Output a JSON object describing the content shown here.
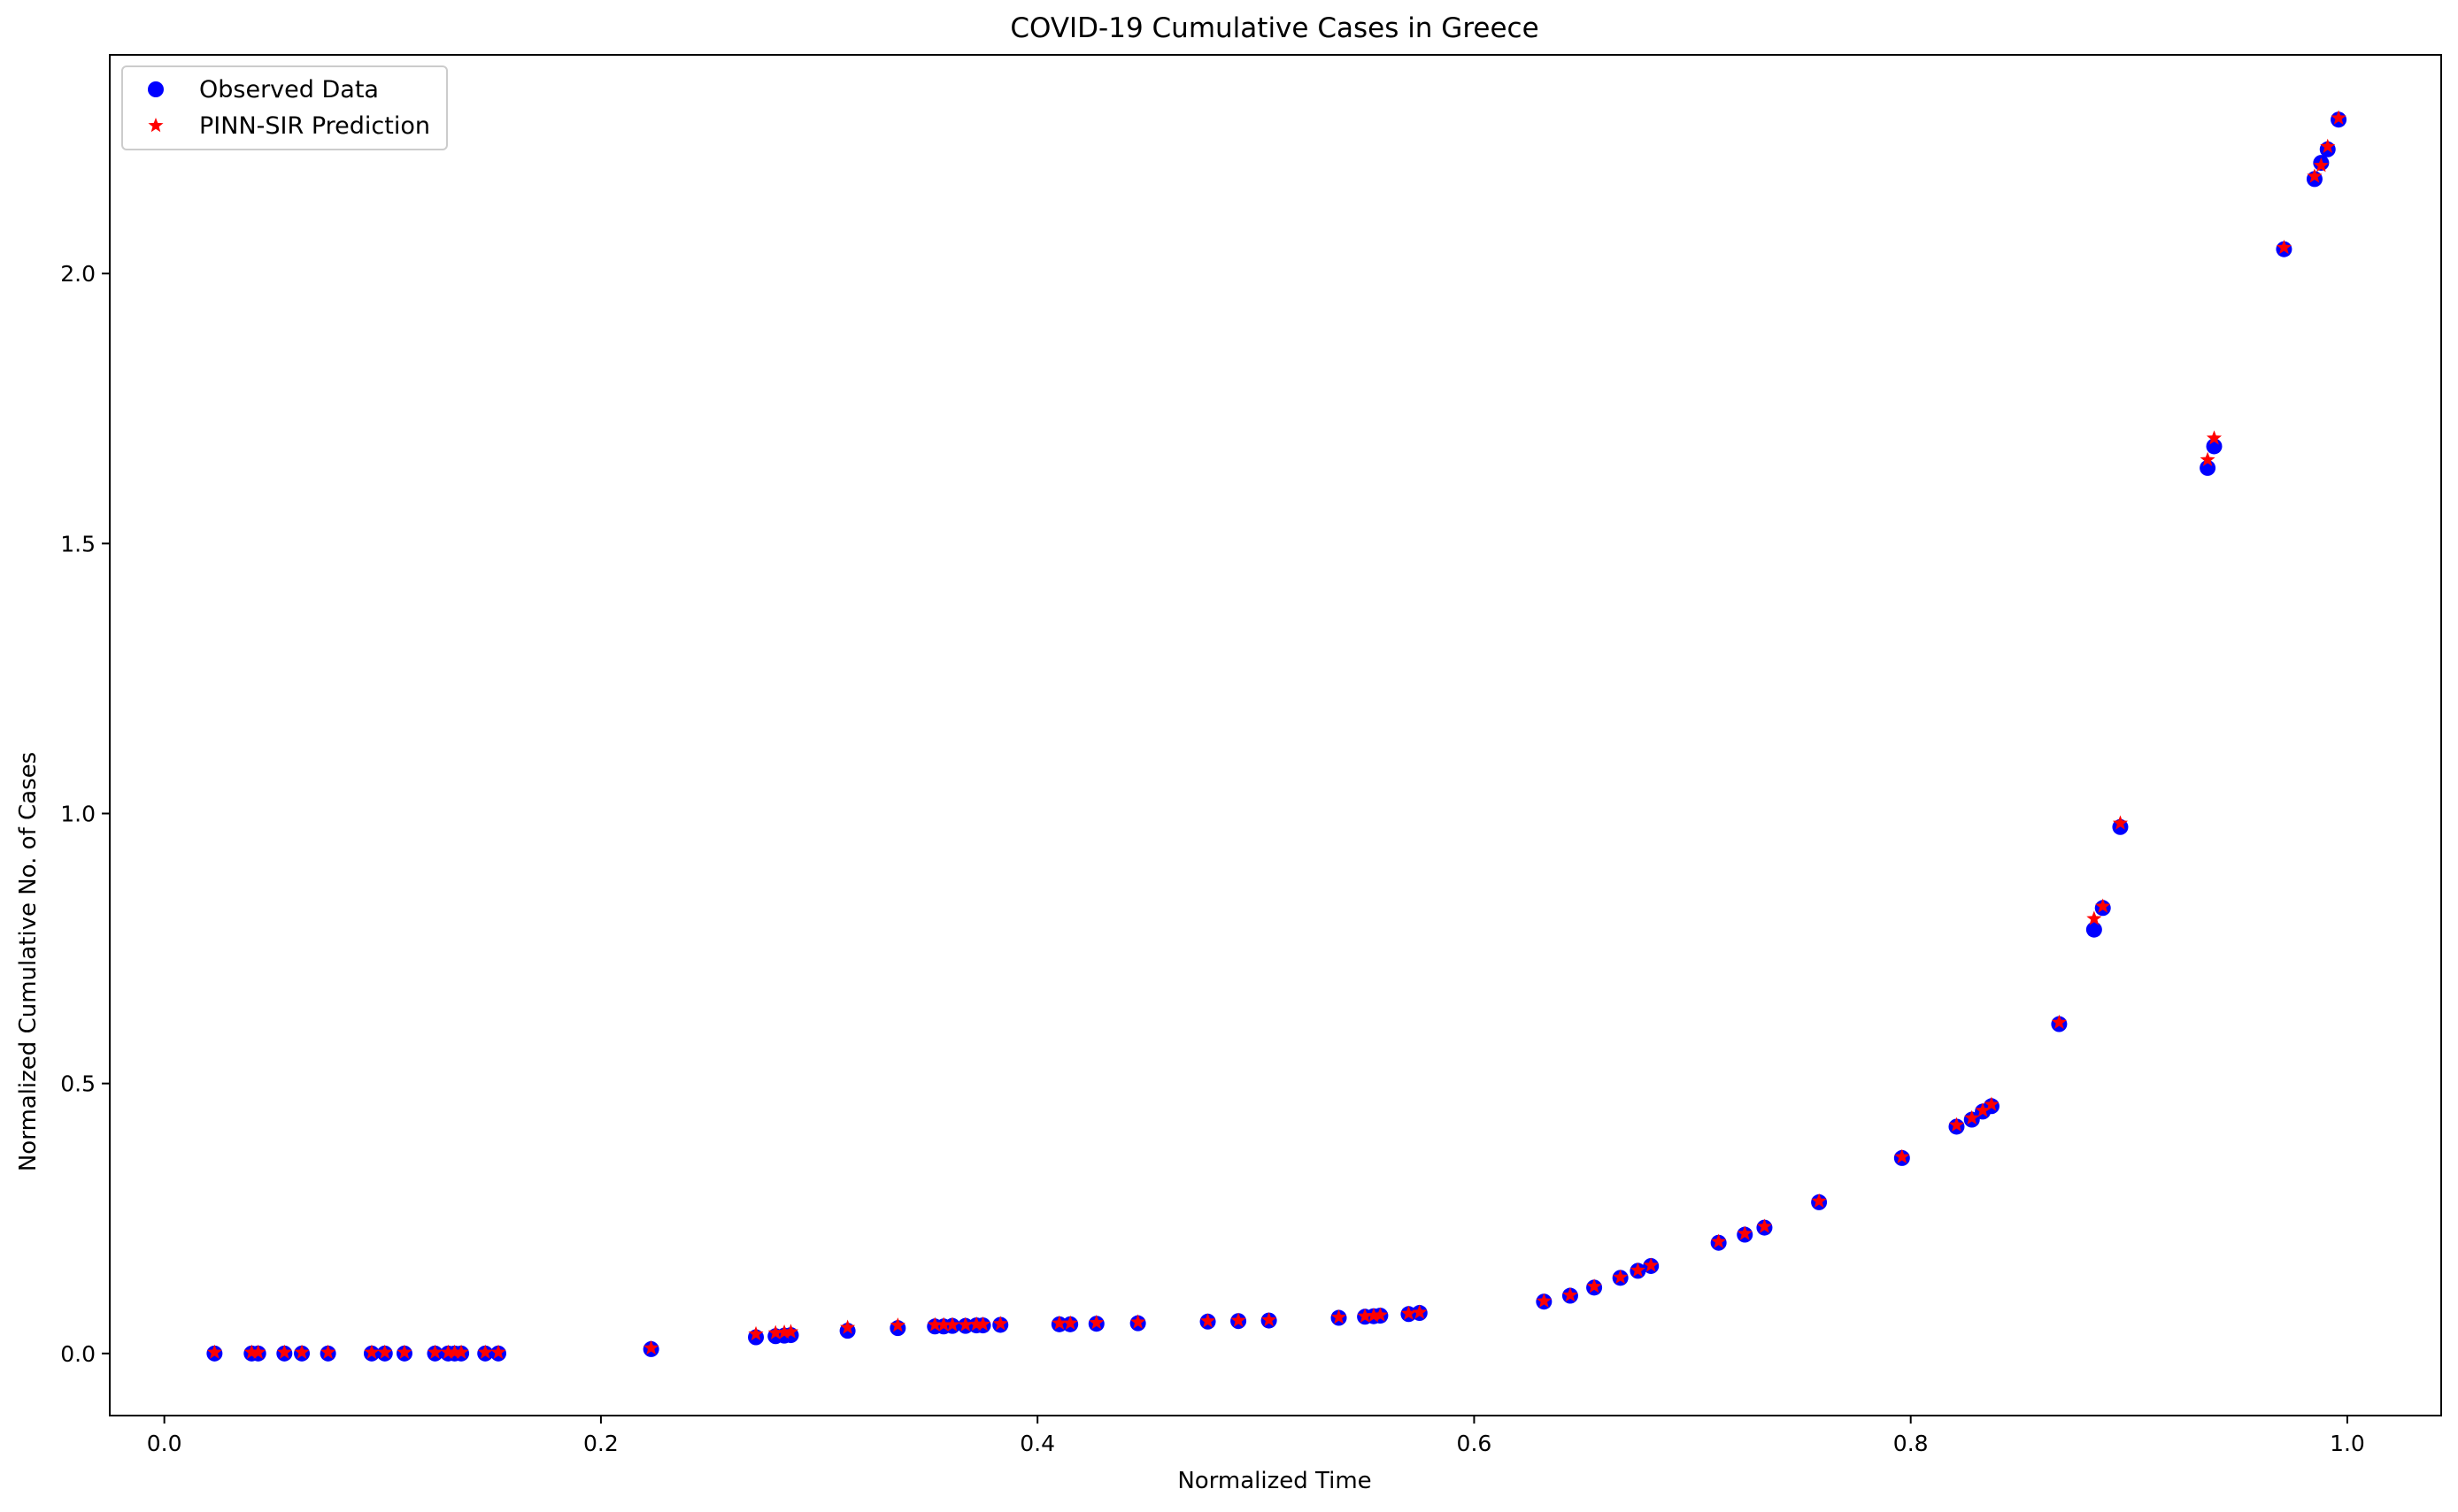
{
  "chart_data": {
    "type": "scatter",
    "title": "COVID-19 Cumulative Cases in Greece",
    "xlabel": "Normalized Time",
    "ylabel": "Normalized Cumulative No. of Cases",
    "xlim": [
      -0.025,
      1.043
    ],
    "ylim": [
      -0.115,
      2.405
    ],
    "xticks": [
      0.0,
      0.2,
      0.4,
      0.6,
      0.8,
      1.0
    ],
    "xtick_labels": [
      "0.0",
      "0.2",
      "0.4",
      "0.6",
      "0.8",
      "1.0"
    ],
    "yticks": [
      0.0,
      0.5,
      1.0,
      1.5,
      2.0
    ],
    "ytick_labels": [
      "0.0",
      "0.5",
      "1.0",
      "1.5",
      "2.0"
    ],
    "grid": false,
    "legend_position": "top-left",
    "series": [
      {
        "name": "Observed Data",
        "marker": "circle",
        "color": "#0000ff",
        "x": [
          0.023,
          0.04,
          0.043,
          0.055,
          0.063,
          0.075,
          0.095,
          0.101,
          0.11,
          0.124,
          0.13,
          0.133,
          0.136,
          0.147,
          0.153,
          0.223,
          0.271,
          0.28,
          0.284,
          0.287,
          0.313,
          0.336,
          0.353,
          0.357,
          0.361,
          0.367,
          0.372,
          0.375,
          0.383,
          0.41,
          0.415,
          0.427,
          0.446,
          0.478,
          0.492,
          0.506,
          0.538,
          0.55,
          0.554,
          0.557,
          0.57,
          0.575,
          0.632,
          0.644,
          0.655,
          0.667,
          0.675,
          0.681,
          0.712,
          0.724,
          0.733,
          0.758,
          0.796,
          0.821,
          0.828,
          0.833,
          0.837,
          0.868,
          0.884,
          0.888,
          0.896,
          0.936,
          0.939,
          0.971,
          0.985,
          0.988,
          0.991,
          0.996
        ],
        "y": [
          0.0,
          0.0,
          0.0,
          0.0,
          0.0,
          0.0,
          0.0,
          0.0,
          0.0,
          0.0,
          0.0,
          0.0,
          0.0,
          0.0,
          0.0,
          0.008,
          0.03,
          0.032,
          0.033,
          0.034,
          0.042,
          0.047,
          0.05,
          0.05,
          0.051,
          0.051,
          0.052,
          0.052,
          0.053,
          0.054,
          0.054,
          0.055,
          0.056,
          0.059,
          0.06,
          0.061,
          0.066,
          0.068,
          0.069,
          0.07,
          0.073,
          0.075,
          0.096,
          0.107,
          0.122,
          0.14,
          0.153,
          0.162,
          0.205,
          0.22,
          0.233,
          0.28,
          0.362,
          0.42,
          0.433,
          0.448,
          0.458,
          0.61,
          0.785,
          0.825,
          0.975,
          1.64,
          1.68,
          2.045,
          2.175,
          2.205,
          2.23,
          2.285
        ]
      },
      {
        "name": "PINN-SIR Prediction",
        "marker": "star",
        "color": "#ff0000",
        "x": [
          0.023,
          0.04,
          0.043,
          0.055,
          0.063,
          0.075,
          0.095,
          0.101,
          0.11,
          0.124,
          0.13,
          0.133,
          0.136,
          0.147,
          0.153,
          0.223,
          0.271,
          0.28,
          0.284,
          0.287,
          0.313,
          0.336,
          0.353,
          0.357,
          0.361,
          0.367,
          0.372,
          0.375,
          0.383,
          0.41,
          0.415,
          0.427,
          0.446,
          0.478,
          0.492,
          0.506,
          0.538,
          0.55,
          0.554,
          0.557,
          0.57,
          0.575,
          0.632,
          0.644,
          0.655,
          0.667,
          0.675,
          0.681,
          0.712,
          0.724,
          0.733,
          0.758,
          0.796,
          0.821,
          0.828,
          0.833,
          0.837,
          0.868,
          0.884,
          0.888,
          0.896,
          0.936,
          0.939,
          0.971,
          0.985,
          0.988,
          0.991,
          0.996
        ],
        "y": [
          0.002,
          0.002,
          0.002,
          0.002,
          0.002,
          0.002,
          0.002,
          0.002,
          0.002,
          0.002,
          0.002,
          0.002,
          0.002,
          0.002,
          0.002,
          0.01,
          0.036,
          0.038,
          0.039,
          0.04,
          0.048,
          0.052,
          0.053,
          0.053,
          0.053,
          0.053,
          0.054,
          0.054,
          0.055,
          0.056,
          0.056,
          0.057,
          0.058,
          0.06,
          0.061,
          0.062,
          0.067,
          0.069,
          0.07,
          0.071,
          0.074,
          0.076,
          0.097,
          0.108,
          0.124,
          0.141,
          0.154,
          0.163,
          0.207,
          0.222,
          0.235,
          0.282,
          0.364,
          0.423,
          0.436,
          0.45,
          0.461,
          0.613,
          0.805,
          0.828,
          0.982,
          1.655,
          1.695,
          2.048,
          2.18,
          2.2,
          2.235,
          2.288
        ]
      }
    ]
  }
}
